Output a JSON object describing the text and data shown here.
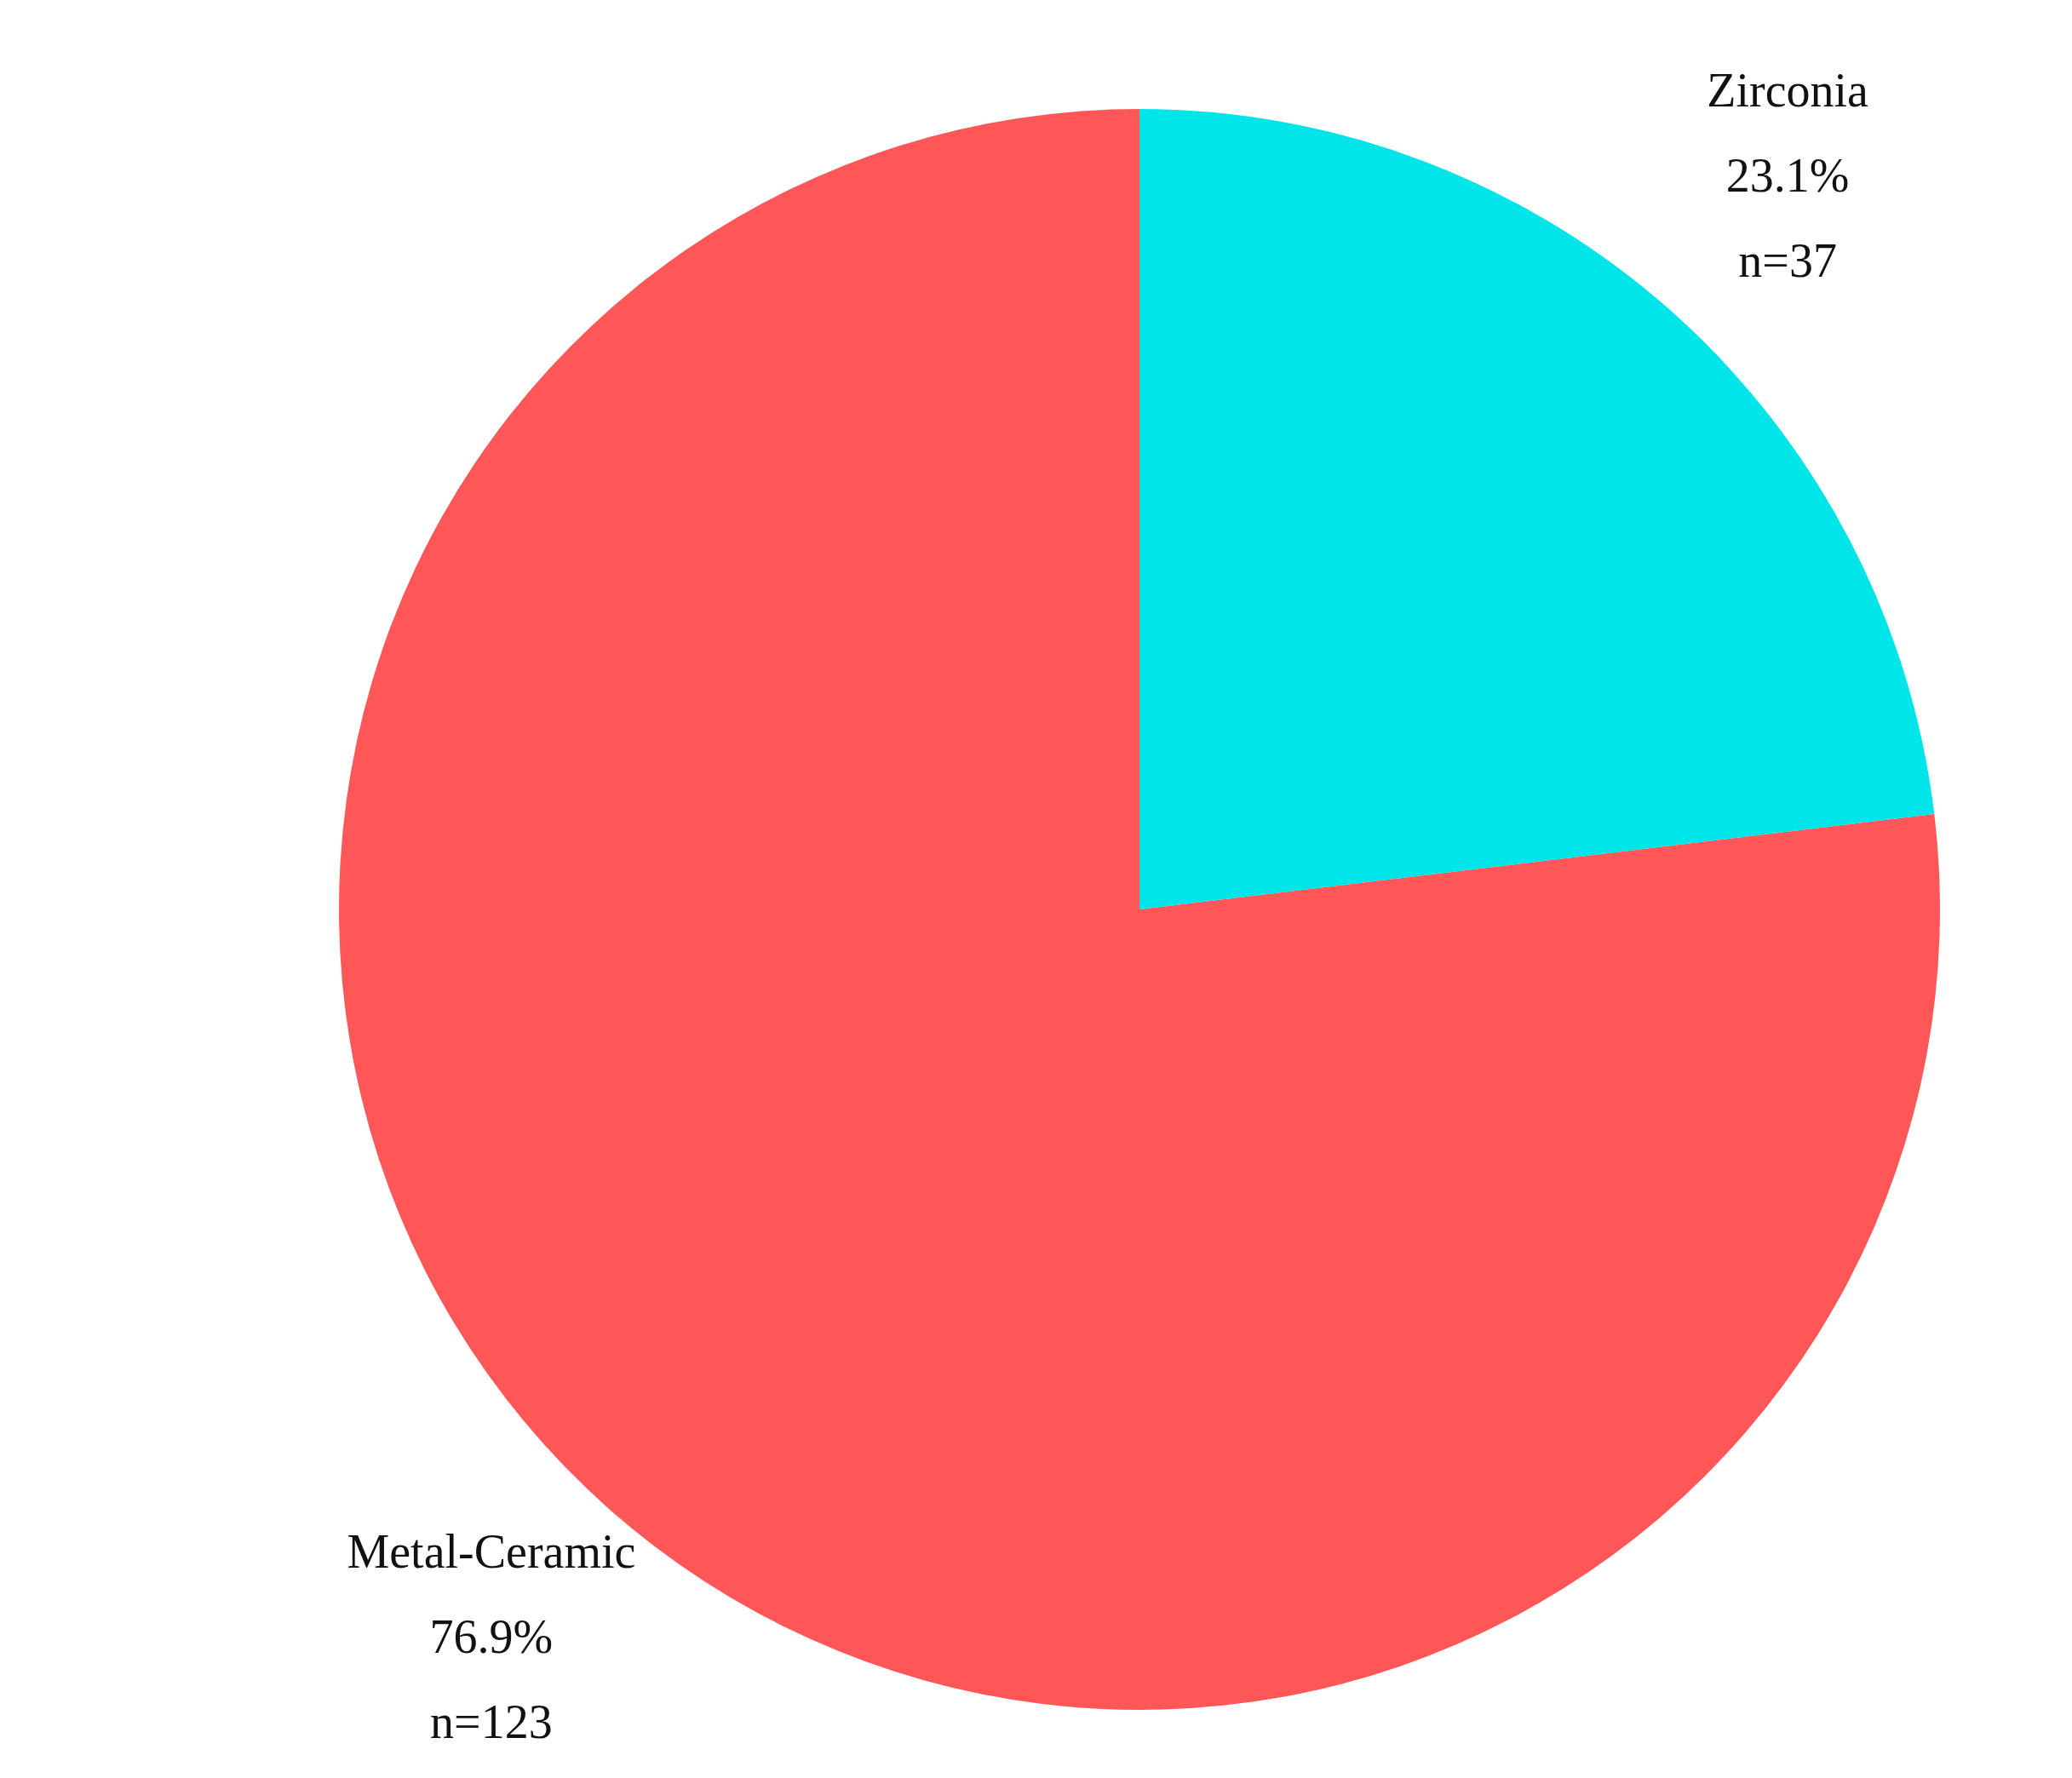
{
  "chart_data": {
    "type": "pie",
    "categories": [
      "Zirconia",
      "Metal-Ceramic"
    ],
    "values": [
      23.1,
      76.9
    ],
    "colors": [
      "#00e5e8",
      "#ff5757"
    ],
    "value_labels": [
      "23.1%\nn=37",
      "76.9%\nn=123"
    ]
  }
}
